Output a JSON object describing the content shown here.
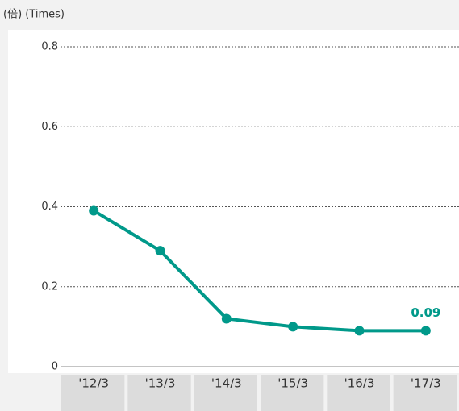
{
  "chart_data": {
    "type": "line",
    "y_axis_label": "(倍) (Times)",
    "categories": [
      "'12/3",
      "'13/3",
      "'14/3",
      "'15/3",
      "'16/3",
      "'17/3"
    ],
    "values": [
      0.39,
      0.29,
      0.12,
      0.1,
      0.09,
      0.09
    ],
    "color": "#00998a",
    "ylim": [
      0,
      0.8
    ],
    "yticks": [
      0,
      0.2,
      0.4,
      0.6,
      0.8
    ],
    "grid": true,
    "labeled_points": [
      5
    ]
  }
}
